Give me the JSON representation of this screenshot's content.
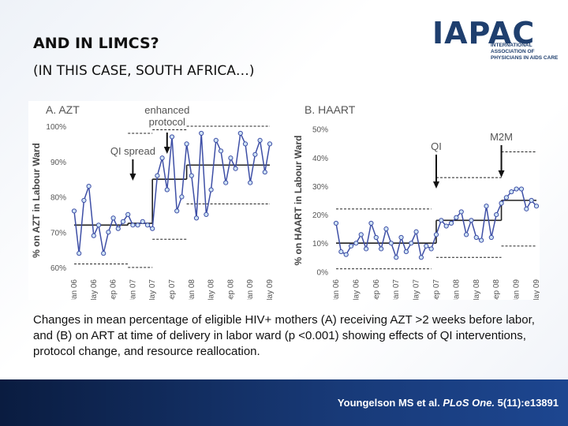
{
  "slide": {
    "title": "AND IN LIMCS?",
    "subtitle": "(IN THIS CASE, SOUTH AFRICA…)",
    "logo_text": "IAPAC",
    "logo_subtext": "INTERNATIONAL ASSOCIATION OF PHYSICIANS IN AIDS CARE",
    "caption": "Changes in mean percentage of eligible HIV+ mothers (A) receiving AZT >2 weeks before labor, and (B) on ART at time of delivery in labor ward (p <0.001) showing effects of QI interventions, protocol change, and resource reallocation.",
    "citation": {
      "authors": "Youngelson MS et al. ",
      "journal": "PLoS One.",
      "ref": " 5(11):e13891"
    }
  },
  "chart_data": [
    {
      "type": "line",
      "panel_label": "A. AZT",
      "ylabel": "% on AZT in Labour Ward",
      "ylim": [
        58,
        100
      ],
      "yticks": [
        "60%",
        "70%",
        "80%",
        "90%",
        "100%"
      ],
      "ytick_values": [
        60,
        70,
        80,
        90,
        100
      ],
      "xticks": [
        "Jan 06",
        "May 06",
        "Sep 06",
        "Jan 07",
        "May 07",
        "Sep 07",
        "Jan 08",
        "May 08",
        "Sep 08",
        "Jan 09",
        "May 09"
      ],
      "annotations": [
        {
          "text": "QI spread",
          "month": 12
        },
        {
          "text": "enhanced protocol",
          "month": 19
        }
      ],
      "x_months": [
        0,
        1,
        2,
        3,
        4,
        5,
        6,
        7,
        8,
        9,
        10,
        11,
        12,
        13,
        14,
        15,
        16,
        17,
        18,
        19,
        20,
        21,
        22,
        23,
        24,
        25,
        26,
        27,
        28,
        29,
        30,
        31,
        32,
        33,
        34,
        35,
        36,
        37,
        38,
        39,
        40
      ],
      "series": [
        {
          "values": [
            76,
            64,
            79,
            83,
            69,
            72,
            64,
            70,
            74,
            71,
            73,
            75,
            72,
            72,
            73,
            72,
            71,
            86,
            91,
            82,
            97,
            76,
            80,
            95,
            86,
            74,
            98,
            75,
            82,
            96,
            93,
            84,
            91,
            88,
            98,
            95,
            84,
            92,
            96,
            87,
            95
          ]
        }
      ],
      "mean_line": [
        {
          "x0": 0,
          "x1": 11,
          "y": 72
        },
        {
          "x0": 11,
          "x1": 16,
          "y": 72.5
        },
        {
          "x0": 16,
          "x1": 23,
          "y": 85
        },
        {
          "x0": 23,
          "x1": 40,
          "y": 89
        }
      ],
      "control_limits": {
        "upper": [
          {
            "x0": 11,
            "x1": 16,
            "y": 98
          },
          {
            "x0": 16,
            "x1": 23,
            "y": 99
          },
          {
            "x0": 23,
            "x1": 40,
            "y": 100
          }
        ],
        "lower": [
          {
            "x0": 0,
            "x1": 11,
            "y": 61
          },
          {
            "x0": 11,
            "x1": 16,
            "y": 60
          },
          {
            "x0": 16,
            "x1": 23,
            "y": 68
          },
          {
            "x0": 23,
            "x1": 40,
            "y": 78
          }
        ]
      }
    },
    {
      "type": "line",
      "panel_label": "B. HAART",
      "ylabel": "% on HAART in Labour Ward",
      "ylim": [
        -1,
        51
      ],
      "yticks": [
        "0%",
        "10%",
        "20%",
        "30%",
        "40%",
        "50%"
      ],
      "ytick_values": [
        0,
        10,
        20,
        30,
        40,
        50
      ],
      "xticks": [
        "Jan 06",
        "May 06",
        "Sep 06",
        "Jan 07",
        "May 07",
        "Sep 07",
        "Jan 08",
        "May 08",
        "Sep 08",
        "Jan 09",
        "May 09"
      ],
      "annotations": [
        {
          "text": "QI",
          "month": 20
        },
        {
          "text": "M2M",
          "month": 33
        }
      ],
      "x_months": [
        0,
        1,
        2,
        3,
        4,
        5,
        6,
        7,
        8,
        9,
        10,
        11,
        12,
        13,
        14,
        15,
        16,
        17,
        18,
        19,
        20,
        21,
        22,
        23,
        24,
        25,
        26,
        27,
        28,
        29,
        30,
        31,
        32,
        33,
        34,
        35,
        36,
        37,
        38,
        39,
        40
      ],
      "series": [
        {
          "values": [
            17,
            7,
            6,
            9,
            10,
            13,
            8,
            17,
            12,
            8,
            15,
            10,
            5,
            12,
            7,
            10,
            14,
            5,
            9,
            8,
            13,
            18,
            16,
            17,
            19,
            21,
            13,
            18,
            12,
            11,
            23,
            12,
            20,
            24,
            26,
            28,
            29,
            29,
            22,
            25,
            23
          ]
        }
      ],
      "mean_line": [
        {
          "x0": 0,
          "x1": 19,
          "y": 10
        },
        {
          "x0": 19,
          "x1": 20,
          "y": 10
        },
        {
          "x0": 20,
          "x1": 33,
          "y": 18
        },
        {
          "x0": 33,
          "x1": 40,
          "y": 25
        }
      ],
      "control_limits": {
        "upper": [
          {
            "x0": 0,
            "x1": 19,
            "y": 22
          },
          {
            "x0": 20,
            "x1": 33,
            "y": 33
          },
          {
            "x0": 33,
            "x1": 40,
            "y": 42
          }
        ],
        "lower": [
          {
            "x0": 0,
            "x1": 19,
            "y": 1
          },
          {
            "x0": 20,
            "x1": 33,
            "y": 5
          },
          {
            "x0": 33,
            "x1": 40,
            "y": 9
          }
        ]
      }
    }
  ]
}
